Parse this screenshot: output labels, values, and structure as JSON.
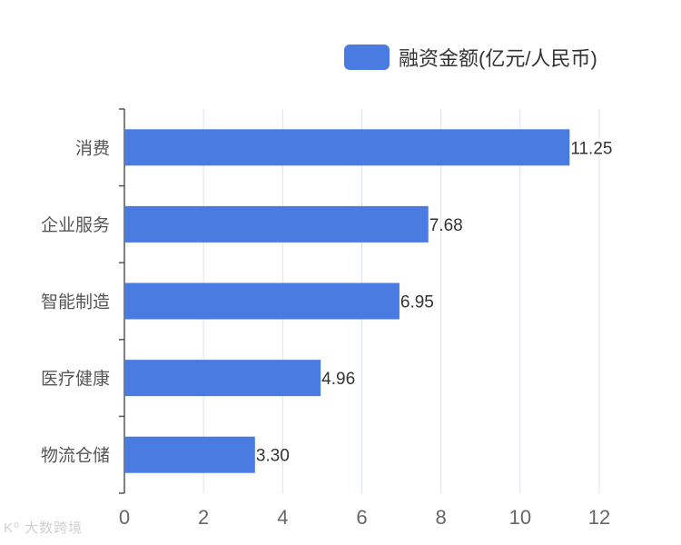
{
  "chart_data": {
    "type": "bar",
    "orientation": "horizontal",
    "categories": [
      "消费",
      "企业服务",
      "智能制造",
      "医疗健康",
      "物流仓储"
    ],
    "series": [
      {
        "name": "融资金额(亿元/人民币)",
        "values": [
          11.25,
          7.68,
          6.95,
          4.96,
          3.3
        ]
      }
    ],
    "data_labels": [
      "11.25",
      "7.68",
      "6.95",
      "4.96",
      "3.30"
    ],
    "xlim": [
      0,
      12
    ],
    "x_ticks": [
      0,
      2,
      4,
      6,
      8,
      10,
      12
    ],
    "grid": "vertical",
    "legend_position": "top-right",
    "bar_color": "#4a7be0"
  },
  "watermark": "K⁰ 大数跨境"
}
